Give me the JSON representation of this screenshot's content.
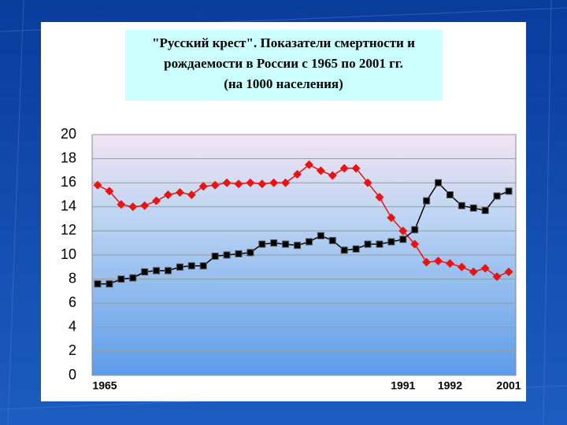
{
  "chart_data": {
    "type": "line",
    "title": [
      "\"Русский крест\". Показатели смертности и",
      "рождаемости в России с 1965 по 2001 гг.",
      "(на 1000 населения)"
    ],
    "categories": [
      "1965",
      null,
      null,
      null,
      null,
      null,
      null,
      null,
      null,
      null,
      null,
      null,
      null,
      null,
      null,
      null,
      null,
      null,
      null,
      null,
      null,
      null,
      null,
      null,
      null,
      null,
      "1991",
      null,
      null,
      null,
      "1992",
      null,
      null,
      null,
      null,
      "2001"
    ],
    "series": [
      {
        "color": "#ee1111",
        "marker": "diamond",
        "values": [
          15.8,
          15.3,
          14.2,
          14.0,
          14.1,
          14.5,
          15.0,
          15.2,
          15.0,
          15.7,
          15.8,
          16.0,
          15.9,
          16.0,
          15.9,
          16.0,
          16.0,
          16.7,
          17.5,
          17.0,
          16.6,
          17.2,
          17.2,
          16.0,
          14.8,
          13.1,
          12.0,
          10.9,
          9.4,
          9.5,
          9.3,
          9.0,
          8.6,
          8.9,
          8.2,
          8.6
        ]
      },
      {
        "color": "#000000",
        "marker": "square",
        "values": [
          7.6,
          7.6,
          8.0,
          8.1,
          8.6,
          8.7,
          8.7,
          9.0,
          9.1,
          9.1,
          9.9,
          10.0,
          10.1,
          10.2,
          10.9,
          11.0,
          10.9,
          10.8,
          11.1,
          11.6,
          11.2,
          10.4,
          10.5,
          10.9,
          10.9,
          11.1,
          11.3,
          12.1,
          14.5,
          16.0,
          15.0,
          14.1,
          13.9,
          13.7,
          14.9,
          15.3
        ]
      }
    ],
    "ylim": [
      0,
      20
    ],
    "yticks": [
      0,
      2,
      4,
      6,
      8,
      10,
      12,
      14,
      16,
      18,
      20
    ],
    "grid": true
  }
}
